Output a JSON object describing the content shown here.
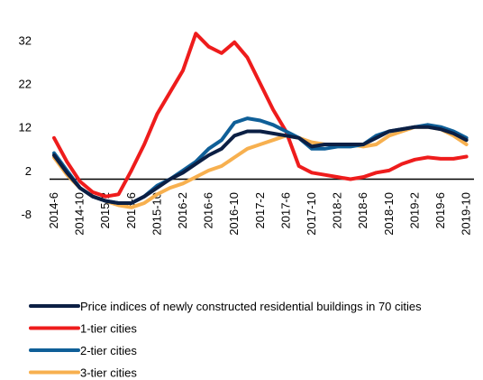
{
  "chart_data": {
    "type": "line",
    "categories": [
      "2014-6",
      null,
      "2014-10",
      null,
      "2015-2",
      null,
      "2015-6",
      null,
      "2015-10",
      null,
      "2016-2",
      null,
      "2016-6",
      null,
      "2016-10",
      null,
      "2017-2",
      null,
      "2017-6",
      null,
      "2017-10",
      null,
      "2018-2",
      null,
      "2018-6",
      null,
      "2018-10",
      null,
      "2019-2",
      null,
      "2019-6",
      null,
      "2019-10"
    ],
    "series": [
      {
        "name": "Price indices of newly constructed residential buildings in 70 cities",
        "color": "#0b1f44",
        "values": [
          5.5,
          1.5,
          -2,
          -4,
          -5,
          -5.5,
          -5.5,
          -4,
          -2,
          0,
          1.5,
          3.5,
          5.5,
          7,
          10,
          11,
          11,
          10.5,
          10,
          9.5,
          7.5,
          8,
          8,
          8,
          8,
          9.5,
          11,
          11.5,
          12,
          12,
          11.5,
          10.5,
          9
        ]
      },
      {
        "name": "1-tier cities",
        "color": "#ee1c1c",
        "values": [
          9.5,
          4,
          -0.5,
          -3,
          -4,
          -3.5,
          2,
          8,
          15,
          20,
          25,
          33.5,
          30.5,
          29,
          31.5,
          28,
          22,
          16,
          11,
          3,
          1.5,
          1,
          0.5,
          0,
          0.5,
          1.5,
          2,
          3.5,
          4.5,
          5,
          4.7,
          4.7,
          5.2
        ]
      },
      {
        "name": "2-tier cities",
        "color": "#0f5f98",
        "values": [
          6,
          2,
          -2,
          -4,
          -5,
          -5.5,
          -5.5,
          -4,
          -1.5,
          0,
          2,
          4,
          7,
          9,
          13,
          14,
          13.5,
          12.5,
          11,
          9.5,
          7,
          7,
          7.5,
          7.5,
          8,
          10,
          11,
          11.5,
          12,
          12.5,
          12,
          11,
          9.5
        ]
      },
      {
        "name": "3-tier cities",
        "color": "#f7b04f",
        "values": [
          5,
          1,
          -2,
          -4,
          -5,
          -6,
          -6.5,
          -5.5,
          -3.5,
          -2,
          -1,
          0.5,
          2,
          3,
          5,
          7,
          8,
          9,
          10,
          9.5,
          8.5,
          8,
          8,
          8,
          7.5,
          8,
          10,
          11,
          12,
          12,
          11.5,
          10,
          8
        ]
      }
    ],
    "ylim": [
      -8,
      35
    ],
    "yticks": [
      -8,
      2,
      12,
      22,
      32
    ],
    "zero_line": true,
    "legend": "bottom"
  }
}
